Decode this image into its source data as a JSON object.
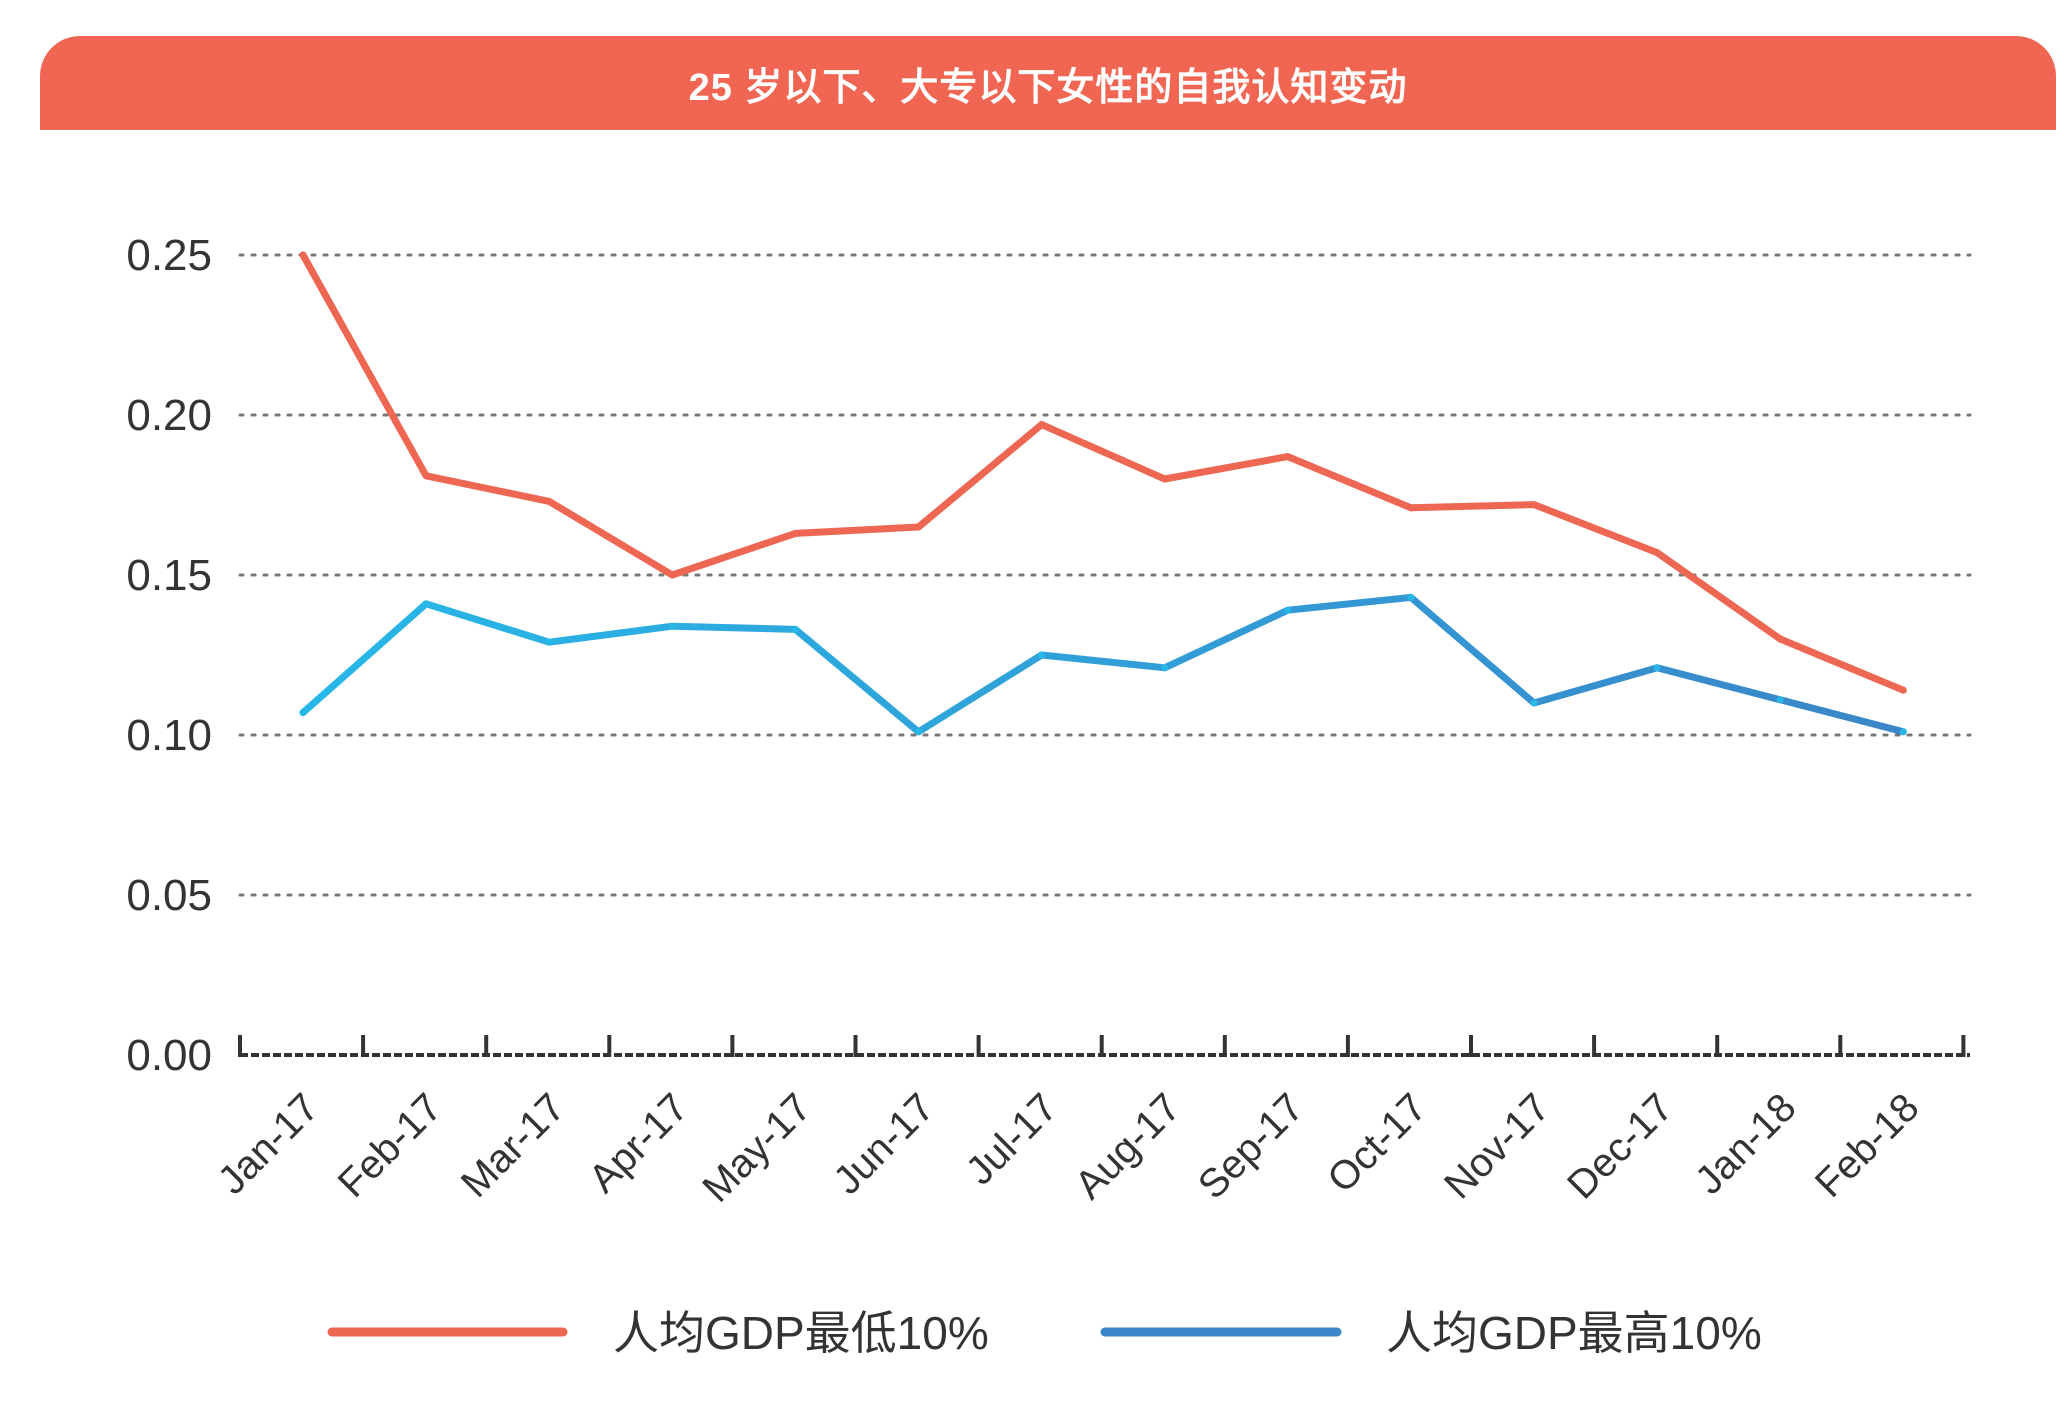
{
  "chart_data": {
    "type": "line",
    "title": "25 岁以下、大专以下女性的自我认知变动",
    "categories": [
      "Jan-17",
      "Feb-17",
      "Mar-17",
      "Apr-17",
      "May-17",
      "Jun-17",
      "Jul-17",
      "Aug-17",
      "Sep-17",
      "Oct-17",
      "Nov-17",
      "Dec-17",
      "Jan-18",
      "Feb-18"
    ],
    "series": [
      {
        "name": "人均GDP最低10%",
        "color": "#ED6753",
        "values": [
          0.25,
          0.181,
          0.173,
          0.15,
          0.163,
          0.165,
          0.197,
          0.18,
          0.187,
          0.171,
          0.172,
          0.157,
          0.13,
          0.114
        ]
      },
      {
        "name": "人均GDP最高10%",
        "color_start": "#27B8E8",
        "color_end": "#3A86C8",
        "values": [
          0.107,
          0.141,
          0.129,
          0.134,
          0.133,
          0.101,
          0.125,
          0.121,
          0.139,
          0.143,
          0.11,
          0.121,
          0.111,
          0.101
        ]
      }
    ],
    "yticks": [
      "0.00",
      "0.05",
      "0.10",
      "0.15",
      "0.20",
      "0.25"
    ],
    "ylim": [
      0,
      0.25
    ],
    "grid": true,
    "legend": "bottom",
    "xlabel": "",
    "ylabel": ""
  },
  "colors": {
    "banner": "#F06652",
    "grid": "#777777",
    "axis": "#333333"
  }
}
